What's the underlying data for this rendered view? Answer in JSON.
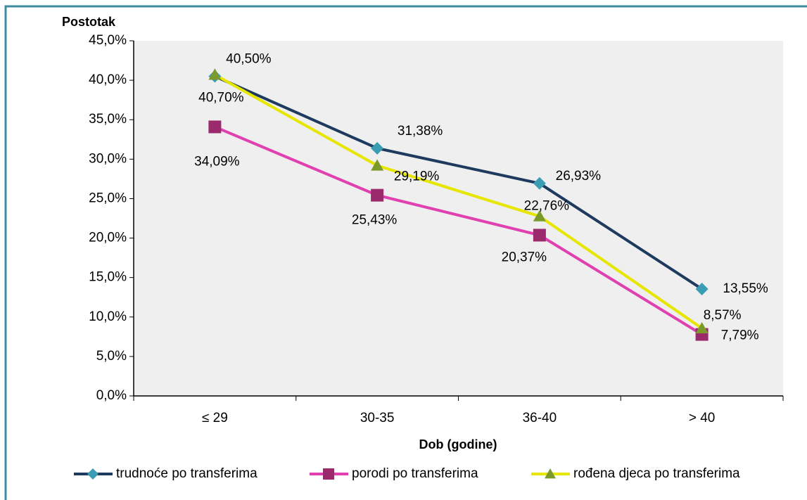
{
  "chart_data": {
    "type": "line",
    "y_label": "Postotak",
    "x_label": "Dob (godine)",
    "categories": [
      "≤ 29",
      "30-35",
      "36-40",
      "> 40"
    ],
    "series": [
      {
        "name": "trudnoće po transferima",
        "color": "#1f3a5f",
        "marker_color": "#3b9db3",
        "marker": "diamond",
        "values": [
          40.5,
          31.38,
          26.93,
          13.55
        ],
        "value_labels": [
          "40,50%",
          "31,38%",
          "26,93%",
          "13,55%"
        ]
      },
      {
        "name": "porodi po transferima",
        "color": "#e040b0",
        "marker_color": "#9a2a6c",
        "marker": "square",
        "values": [
          34.09,
          25.43,
          20.37,
          7.79
        ],
        "value_labels": [
          "34,09%",
          "25,43%",
          "20,37%",
          "7,79%"
        ]
      },
      {
        "name": "rođena djeca po transferima",
        "color": "#e6e600",
        "marker_color": "#7c9a2c",
        "marker": "triangle",
        "values": [
          40.7,
          29.19,
          22.76,
          8.57
        ],
        "value_labels": [
          "40,70%",
          "29,19%",
          "22,76%",
          "8,57%"
        ]
      }
    ],
    "ylim": [
      0,
      45
    ],
    "yticks": [
      {
        "value": 0,
        "label": "0,0%"
      },
      {
        "value": 5,
        "label": "5,0%"
      },
      {
        "value": 10,
        "label": "10,0%"
      },
      {
        "value": 15,
        "label": "15,0%"
      },
      {
        "value": 20,
        "label": "20,0%"
      },
      {
        "value": 25,
        "label": "25,0%"
      },
      {
        "value": 30,
        "label": "30,0%"
      },
      {
        "value": 35,
        "label": "35,0%"
      },
      {
        "value": 40,
        "label": "40,0%"
      },
      {
        "value": 45,
        "label": "45,0%"
      }
    ],
    "grid": false,
    "legend": "bottom"
  }
}
